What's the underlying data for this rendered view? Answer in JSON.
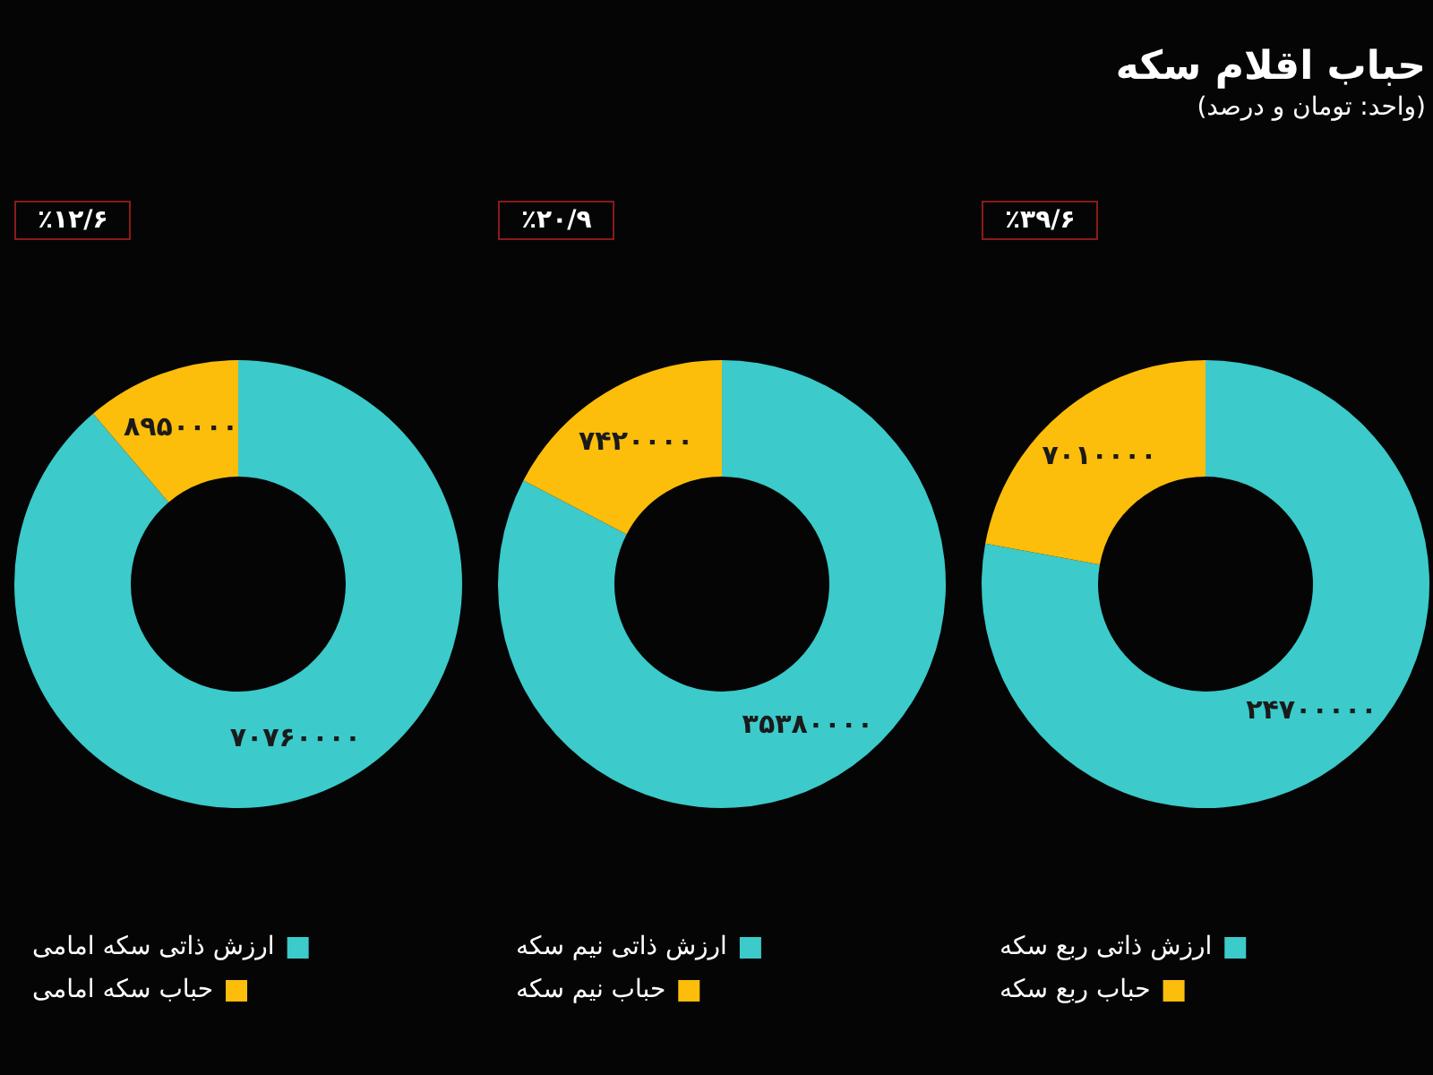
{
  "chart_data": [
    {
      "type": "donut",
      "categories": [
        "ارزش ذاتی سکه امامی",
        "حباب سکه امامی"
      ],
      "values": [
        70760000,
        8950000
      ],
      "colors": [
        "#3ccaca",
        "#fcbd0b"
      ],
      "value_labels": [
        "۷۰۷۶۰۰۰۰",
        "۸۹۵۰۰۰۰"
      ],
      "annotations": [
        "٪۱۲/۶"
      ],
      "legend": "bottom"
    },
    {
      "type": "donut",
      "categories": [
        "ارزش ذاتی نیم سکه",
        "حباب نیم سکه"
      ],
      "values": [
        35380000,
        7420000
      ],
      "colors": [
        "#3ccaca",
        "#fcbd0b"
      ],
      "value_labels": [
        "۳۵۳۸۰۰۰۰",
        "۷۴۲۰۰۰۰"
      ],
      "annotations": [
        "٪۲۰/۹"
      ],
      "legend": "bottom"
    },
    {
      "type": "donut",
      "title": "حباب اقلام سکه",
      "subtitle": "(واحد: تومان و درصد)",
      "categories": [
        "ارزش ذاتی ربع سکه",
        "حباب ربع سکه"
      ],
      "values": [
        24700000,
        7010000
      ],
      "colors": [
        "#3ccaca",
        "#fcbd0b"
      ],
      "value_labels": [
        "۲۴۷۰۰۰۰۰",
        "۷۰۱۰۰۰۰"
      ],
      "annotations": [
        "٪۳۹/۶"
      ],
      "legend": "bottom"
    }
  ]
}
